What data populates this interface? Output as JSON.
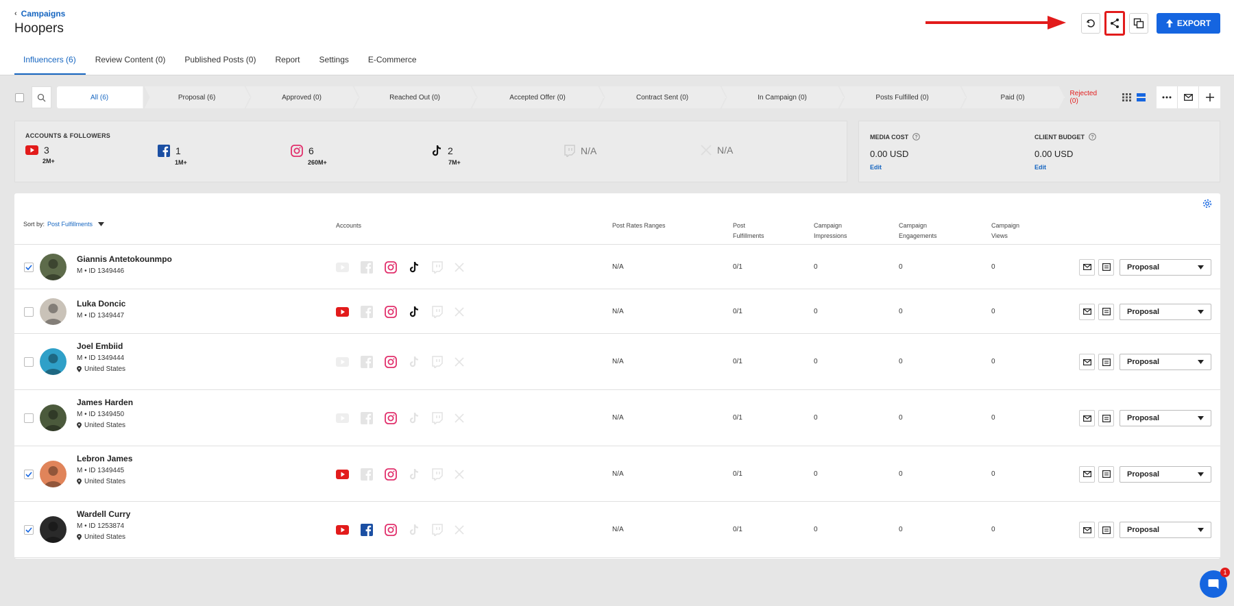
{
  "header": {
    "breadcrumb": "Campaigns",
    "title": "Hoopers",
    "export_label": "EXPORT"
  },
  "tabs": [
    {
      "label": "Influencers (6)"
    },
    {
      "label": "Review Content (0)"
    },
    {
      "label": "Published Posts (0)"
    },
    {
      "label": "Report"
    },
    {
      "label": "Settings"
    },
    {
      "label": "E-Commerce"
    }
  ],
  "stages": [
    {
      "label": "All (6)"
    },
    {
      "label": "Proposal (6)"
    },
    {
      "label": "Approved (0)"
    },
    {
      "label": "Reached Out (0)"
    },
    {
      "label": "Accepted Offer (0)"
    },
    {
      "label": "Contract Sent (0)"
    },
    {
      "label": "In Campaign (0)"
    },
    {
      "label": "Posts Fulfilled (0)"
    },
    {
      "label": "Paid (0)"
    }
  ],
  "rejected_label": "Rejected (0)",
  "accounts_panel": {
    "title": "ACCOUNTS & FOLLOWERS",
    "youtube": {
      "count": "3",
      "followers": "2M+"
    },
    "facebook": {
      "count": "1",
      "followers": "1M+"
    },
    "instagram": {
      "count": "6",
      "followers": "260M+"
    },
    "tiktok": {
      "count": "2",
      "followers": "7M+"
    },
    "twitch": {
      "count": "N/A"
    },
    "x": {
      "count": "N/A"
    }
  },
  "budget_panel": {
    "media_cost_label": "MEDIA COST",
    "media_cost_value": "0.00 USD",
    "client_budget_label": "CLIENT BUDGET",
    "client_budget_value": "0.00 USD",
    "edit_label": "Edit"
  },
  "table": {
    "sort_label": "Sort by:",
    "sort_value": "Post Fulfillments",
    "headers": {
      "accounts": "Accounts",
      "rates": "Post Rates Ranges",
      "fulfillments_1": "Post",
      "fulfillments_2": "Fulfillments",
      "impressions_1": "Campaign",
      "impressions_2": "Impressions",
      "engagements_1": "Campaign",
      "engagements_2": "Engagements",
      "views_1": "Campaign",
      "views_2": "Views"
    },
    "rows": [
      {
        "name": "Giannis Antetokounmpo",
        "meta": "M • ID 1349446",
        "location": "",
        "rates": "N/A",
        "fulfillments": "0/1",
        "impressions": "0",
        "engagements": "0",
        "views": "0",
        "status": "Proposal",
        "checked": true
      },
      {
        "name": "Luka Doncic",
        "meta": "M • ID 1349447",
        "location": "",
        "rates": "N/A",
        "fulfillments": "0/1",
        "impressions": "0",
        "engagements": "0",
        "views": "0",
        "status": "Proposal",
        "checked": false
      },
      {
        "name": "Joel Embiid",
        "meta": "M • ID 1349444",
        "location": "United States",
        "rates": "N/A",
        "fulfillments": "0/1",
        "impressions": "0",
        "engagements": "0",
        "views": "0",
        "status": "Proposal",
        "checked": false
      },
      {
        "name": "James Harden",
        "meta": "M • ID 1349450",
        "location": "United States",
        "rates": "N/A",
        "fulfillments": "0/1",
        "impressions": "0",
        "engagements": "0",
        "views": "0",
        "status": "Proposal",
        "checked": false
      },
      {
        "name": "Lebron James",
        "meta": "M • ID 1349445",
        "location": "United States",
        "rates": "N/A",
        "fulfillments": "0/1",
        "impressions": "0",
        "engagements": "0",
        "views": "0",
        "status": "Proposal",
        "checked": true
      },
      {
        "name": "Wardell Curry",
        "meta": "M • ID 1253874",
        "location": "United States",
        "rates": "N/A",
        "fulfillments": "0/1",
        "impressions": "0",
        "engagements": "0",
        "views": "0",
        "status": "Proposal",
        "checked": true
      }
    ]
  },
  "chat_badge": "1",
  "colors": {
    "accent": "#1565e0",
    "highlight": "#e21b1b",
    "youtube": "#e21b1b",
    "facebook": "#1b4fa3",
    "instagram": "#e1306c"
  }
}
